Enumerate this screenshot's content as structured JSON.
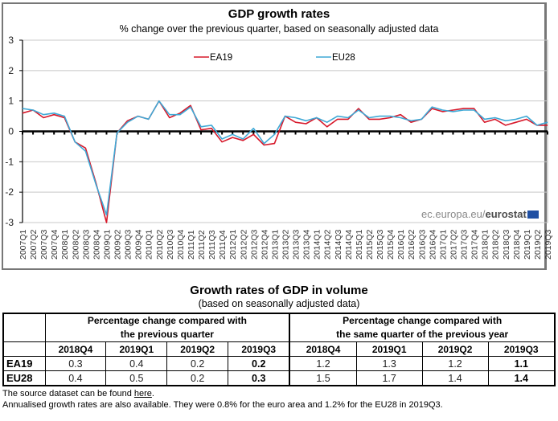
{
  "chart_data": {
    "type": "line",
    "title": "GDP growth rates",
    "subtitle": "% change over the previous quarter, based on seasonally adjusted data",
    "xlabel": "",
    "ylabel": "",
    "ylim": [
      -3,
      3
    ],
    "yticks": [
      3,
      2,
      1,
      0,
      -1,
      -2,
      -3
    ],
    "grid": true,
    "legend_position": "top-center",
    "watermark": {
      "prefix": "ec.europa.eu/",
      "brand": "eurostat"
    },
    "x": [
      "2007Q1",
      "2007Q2",
      "2007Q3",
      "2007Q4",
      "2008Q1",
      "2008Q2",
      "2008Q3",
      "2008Q4",
      "2009Q1",
      "2009Q2",
      "2009Q3",
      "2009Q4",
      "2010Q1",
      "2010Q2",
      "2010Q3",
      "2010Q4",
      "2011Q1",
      "2011Q2",
      "2011Q3",
      "2011Q4",
      "2012Q1",
      "2012Q2",
      "2012Q3",
      "2012Q4",
      "2013Q1",
      "2013Q2",
      "2013Q3",
      "2013Q4",
      "2014Q1",
      "2014Q2",
      "2014Q3",
      "2014Q4",
      "2015Q1",
      "2015Q2",
      "2015Q3",
      "2015Q4",
      "2016Q1",
      "2016Q2",
      "2016Q3",
      "2016Q4",
      "2017Q1",
      "2017Q2",
      "2017Q3",
      "2017Q4",
      "2018Q1",
      "2018Q2",
      "2018Q3",
      "2018Q4",
      "2019Q1",
      "2019Q2",
      "2019Q3"
    ],
    "series": [
      {
        "name": "EA19",
        "color": "#d7182a",
        "values": [
          0.6,
          0.7,
          0.45,
          0.55,
          0.45,
          -0.35,
          -0.55,
          -1.7,
          -3.0,
          -0.05,
          0.35,
          0.5,
          0.4,
          1.0,
          0.45,
          0.6,
          0.85,
          0.05,
          0.1,
          -0.35,
          -0.2,
          -0.3,
          -0.1,
          -0.45,
          -0.4,
          0.5,
          0.3,
          0.25,
          0.45,
          0.15,
          0.4,
          0.4,
          0.75,
          0.4,
          0.4,
          0.45,
          0.55,
          0.3,
          0.4,
          0.75,
          0.65,
          0.7,
          0.75,
          0.75,
          0.3,
          0.4,
          0.2,
          0.3,
          0.4,
          0.2,
          0.2
        ]
      },
      {
        "name": "EU28",
        "color": "#3fa9d6",
        "values": [
          0.75,
          0.7,
          0.55,
          0.6,
          0.5,
          -0.35,
          -0.65,
          -1.75,
          -2.75,
          -0.05,
          0.3,
          0.5,
          0.4,
          1.0,
          0.55,
          0.55,
          0.8,
          0.15,
          0.2,
          -0.25,
          -0.1,
          -0.25,
          0.1,
          -0.4,
          -0.1,
          0.5,
          0.45,
          0.35,
          0.45,
          0.3,
          0.5,
          0.45,
          0.7,
          0.45,
          0.5,
          0.5,
          0.45,
          0.35,
          0.4,
          0.8,
          0.7,
          0.65,
          0.7,
          0.7,
          0.4,
          0.45,
          0.35,
          0.4,
          0.5,
          0.2,
          0.3
        ]
      }
    ]
  },
  "table": {
    "title": "Growth rates of GDP in volume",
    "subtitle": "(based on seasonally adjusted data)",
    "group1_line1": "Percentage change compared with",
    "group1_line2": "the previous quarter",
    "group2_line1": "Percentage change compared with",
    "group2_line2": "the same quarter of the previous year",
    "columns": [
      "2018Q4",
      "2019Q1",
      "2019Q2",
      "2019Q3",
      "2018Q4",
      "2019Q1",
      "2019Q2",
      "2019Q3"
    ],
    "rows": [
      {
        "label": "EA19",
        "values": [
          "0.3",
          "0.4",
          "0.2",
          "0.2",
          "1.2",
          "1.3",
          "1.2",
          "1.1"
        ]
      },
      {
        "label": "EU28",
        "values": [
          "0.4",
          "0.5",
          "0.2",
          "0.3",
          "1.5",
          "1.7",
          "1.4",
          "1.4"
        ]
      }
    ]
  },
  "footnotes": {
    "source_prefix": "The source dataset can be found ",
    "source_link": "here",
    "source_suffix": ".",
    "annualised": "Annualised growth rates are also available. They were 0.8% for the euro area and 1.2% for the EU28 in 2019Q3."
  }
}
